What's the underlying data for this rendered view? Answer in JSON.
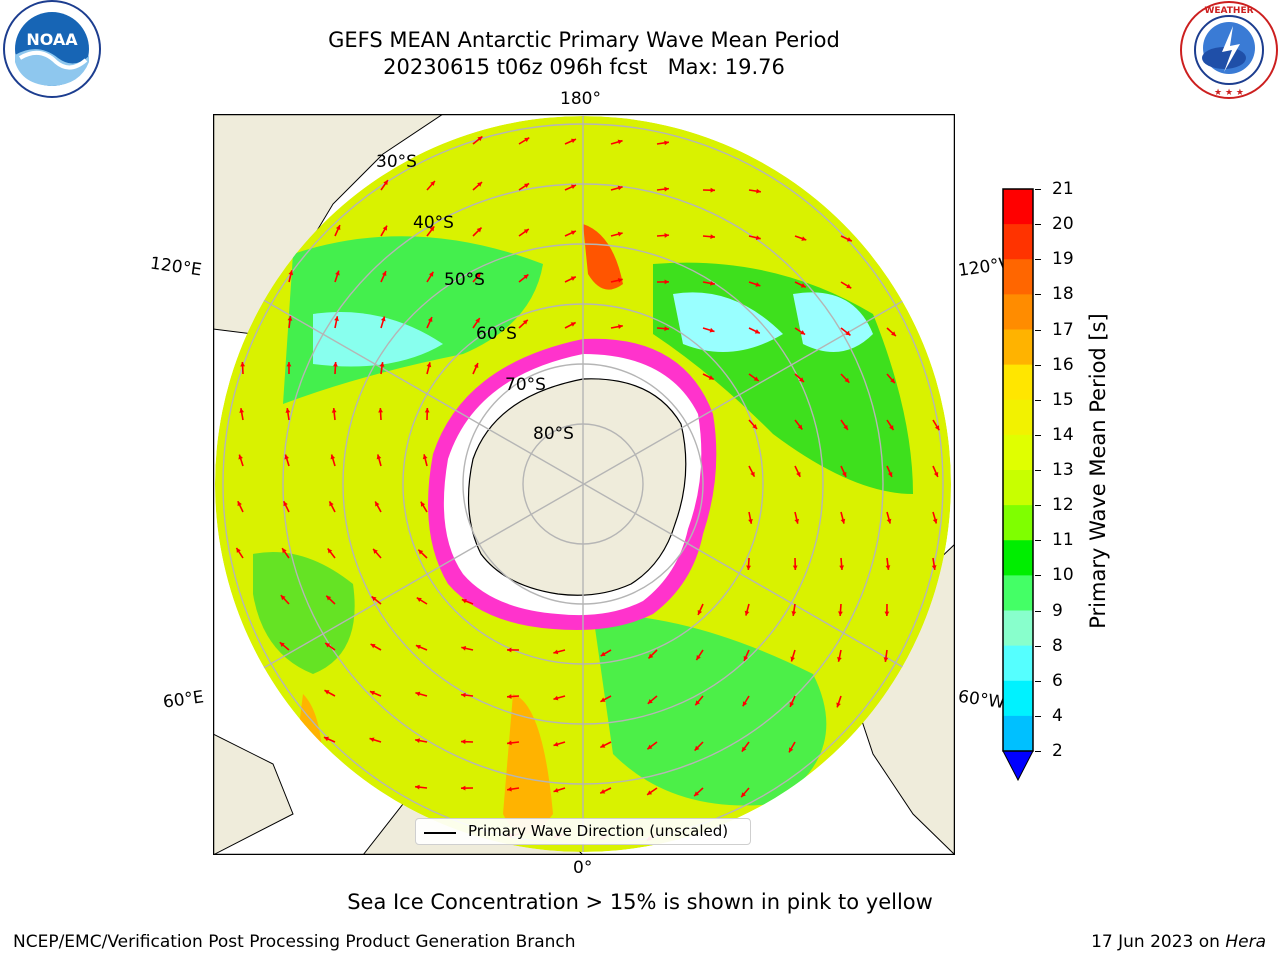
{
  "title": {
    "line1": "GEFS MEAN Antarctic Primary Wave Mean Period",
    "line2": "20230615 t06z 096h fcst   Max: 19.76"
  },
  "logos": {
    "left": "noaa-logo",
    "right": "nws-logo"
  },
  "map": {
    "projection": "south-polar-stereographic",
    "lon_labels": {
      "top": "180°",
      "bottom": "0°",
      "upper_left": "120°E",
      "upper_right": "120°W",
      "lower_left": "60°E",
      "lower_right": "60°W"
    },
    "lat_labels": [
      "30°S",
      "40°S",
      "50°S",
      "60°S",
      "70°S",
      "80°S"
    ],
    "colors": {
      "land": "#efecdb",
      "gridline": "#b5b5b5",
      "arrow": "#ff0000",
      "ice": "#ff33cc",
      "background": "#ffffff"
    }
  },
  "legend": {
    "label": "Primary Wave Direction (unscaled)"
  },
  "colorbar": {
    "title": "Primary Wave Mean Period [s]",
    "ticks": [
      "21",
      "20",
      "19",
      "18",
      "17",
      "16",
      "15",
      "14",
      "13",
      "12",
      "11",
      "10",
      "9",
      "8",
      "6",
      "4",
      "2"
    ],
    "colors": [
      "#ff0000",
      "#ff3300",
      "#ff6600",
      "#ff8c00",
      "#ffb300",
      "#ffe600",
      "#f2f200",
      "#e0ff00",
      "#c8ff00",
      "#7fff00",
      "#00ee00",
      "#44ff66",
      "#88ffcc",
      "#55ffff",
      "#00f2ff",
      "#00c0ff",
      "#0066ff",
      "#0000ff"
    ]
  },
  "note": "Sea Ice Concentration > 15% is shown in pink to yellow",
  "footer": {
    "left": "NCEP/EMC/Verification Post Processing Product Generation Branch",
    "right_prefix": "17 Jun 2023 on ",
    "right_host": "Hera"
  }
}
